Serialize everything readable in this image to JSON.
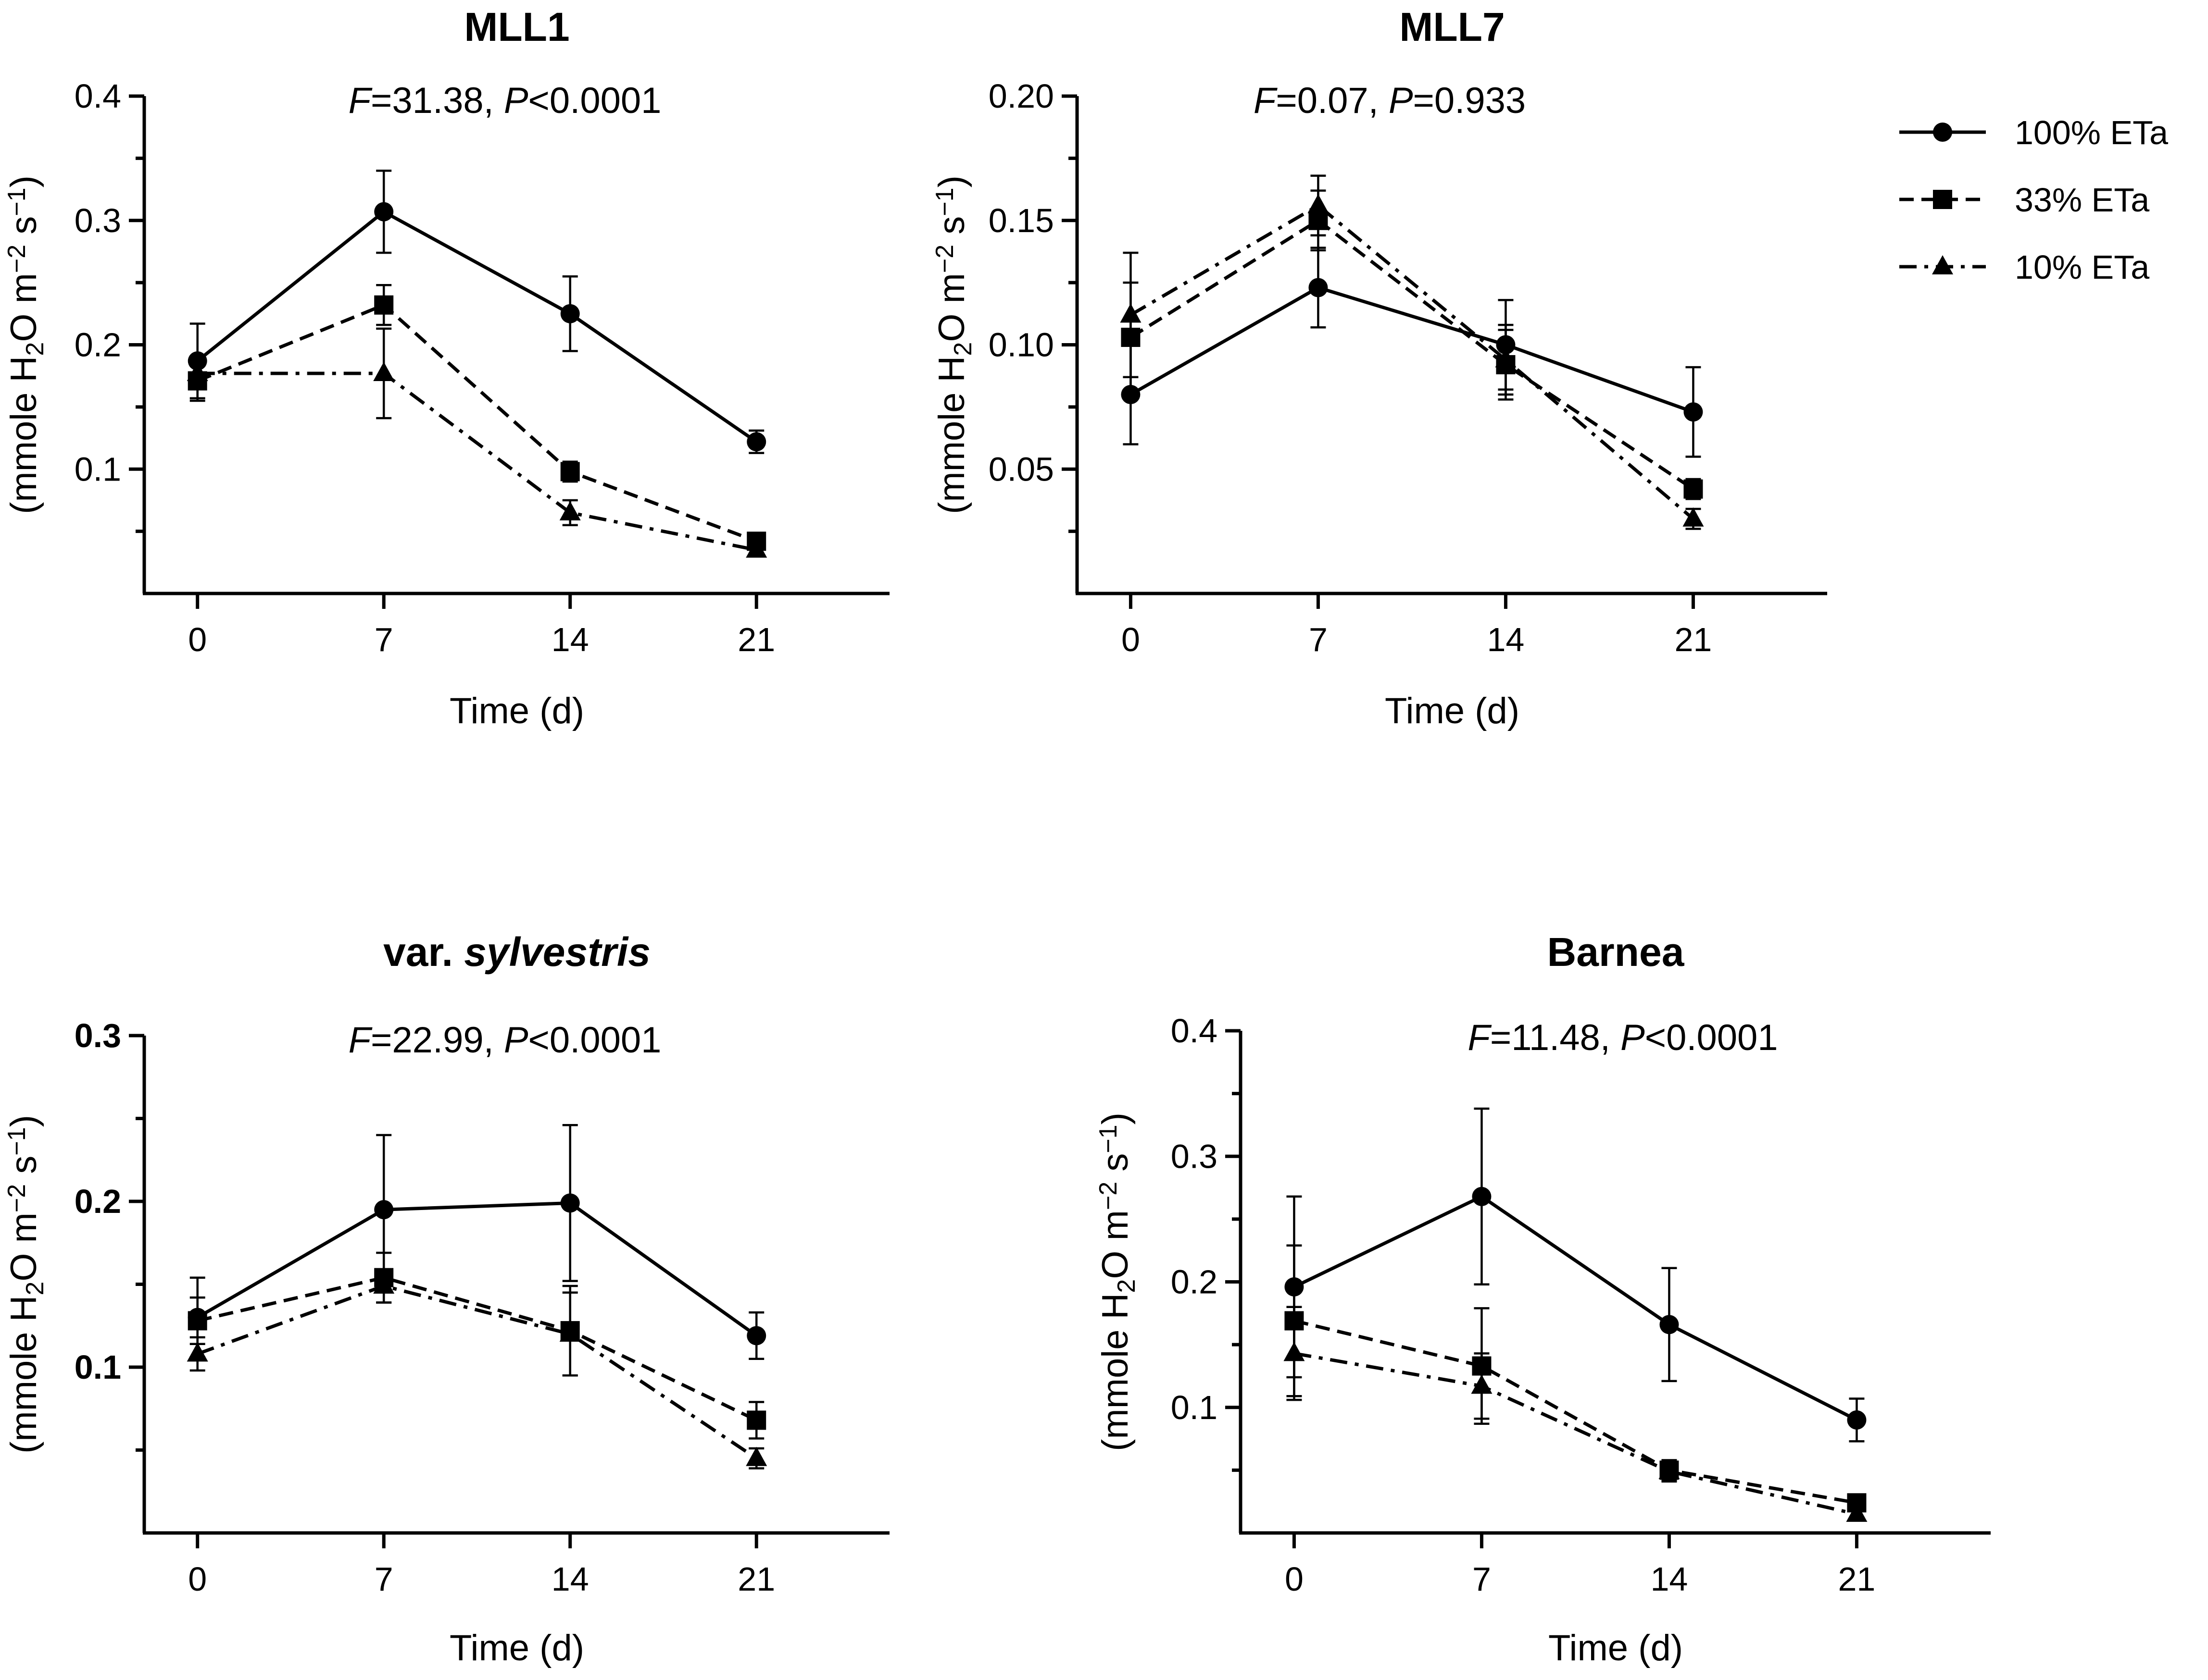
{
  "legend": {
    "entries": [
      {
        "label": "100% ETa",
        "marker": "circle",
        "dash": "solid"
      },
      {
        "label": "33% ETa",
        "marker": "square",
        "dash": "dashed"
      },
      {
        "label": "10% ETa",
        "marker": "triangle",
        "dash": "dashdot"
      }
    ]
  },
  "chart_data": [
    {
      "type": "line",
      "title": "MLL1",
      "stat": {
        "F": "31.38",
        "P": "<0.0001"
      },
      "xlabel": "Time (d)",
      "ylabel": "(mmole H2O m−2 s−1)",
      "x": [
        0,
        7,
        14,
        21
      ],
      "xlim": [
        -2,
        26
      ],
      "ylim": [
        0,
        0.4
      ],
      "yticks": [
        0.1,
        0.2,
        0.3,
        0.4
      ],
      "ytick_labels": [
        "0.1",
        "0.2",
        "0.3",
        "0.4"
      ],
      "ytick_bold": false,
      "series": [
        {
          "name": "100% ETa",
          "values": [
            0.187,
            0.307,
            0.225,
            0.122
          ],
          "err": [
            0.03,
            0.033,
            0.03,
            0.009
          ]
        },
        {
          "name": "33% ETa",
          "values": [
            0.171,
            0.232,
            0.098,
            0.042
          ],
          "err": [
            0.016,
            0.016,
            0.008,
            0.006
          ]
        },
        {
          "name": "10% ETa",
          "values": [
            0.177,
            0.177,
            0.065,
            0.035
          ],
          "err": [
            0.01,
            0.036,
            0.01,
            0.005
          ]
        }
      ]
    },
    {
      "type": "line",
      "title": "MLL7",
      "stat": {
        "F": "0.07",
        "P": "=0.933"
      },
      "xlabel": "Time (d)",
      "ylabel": "(mmole H2O m−2 s−1)",
      "x": [
        0,
        7,
        14,
        21
      ],
      "xlim": [
        -2,
        26
      ],
      "ylim": [
        0,
        0.2
      ],
      "yticks": [
        0.05,
        0.1,
        0.15,
        0.2
      ],
      "ytick_labels": [
        "0.05",
        "0.10",
        "0.15",
        "0.20"
      ],
      "ytick_bold": false,
      "series": [
        {
          "name": "100% ETa",
          "values": [
            0.08,
            0.123,
            0.1,
            0.073
          ],
          "err": [
            0.02,
            0.016,
            0.018,
            0.018
          ]
        },
        {
          "name": "33% ETa",
          "values": [
            0.103,
            0.15,
            0.092,
            0.042
          ],
          "err": [
            0.022,
            0.012,
            0.014,
            0.004
          ]
        },
        {
          "name": "10% ETa",
          "values": [
            0.112,
            0.156,
            0.094,
            0.03
          ],
          "err": [
            0.025,
            0.012,
            0.014,
            0.004
          ]
        }
      ]
    },
    {
      "type": "line",
      "title": "var. ",
      "title_italic": "sylvestris",
      "stat": {
        "F": "22.99",
        "P": "<0.0001"
      },
      "xlabel": "Time (d)",
      "ylabel": "(mmole H2O m−2 s−1)",
      "x": [
        0,
        7,
        14,
        21
      ],
      "xlim": [
        -2,
        26
      ],
      "ylim": [
        0,
        0.3
      ],
      "yticks": [
        0.1,
        0.2,
        0.3
      ],
      "ytick_labels": [
        "0.1",
        "0.2",
        "0.3"
      ],
      "ytick_bold": true,
      "series": [
        {
          "name": "100% ETa",
          "values": [
            0.13,
            0.195,
            0.199,
            0.119
          ],
          "err": [
            0.024,
            0.045,
            0.047,
            0.014
          ]
        },
        {
          "name": "33% ETa",
          "values": [
            0.128,
            0.154,
            0.122,
            0.068
          ],
          "err": [
            0.014,
            0.015,
            0.027,
            0.011
          ]
        },
        {
          "name": "10% ETa",
          "values": [
            0.108,
            0.149,
            0.12,
            0.045
          ],
          "err": [
            0.01,
            0.01,
            0.025,
            0.006
          ]
        }
      ]
    },
    {
      "type": "line",
      "title": "Barnea",
      "stat": {
        "F": "11.48",
        "P": "<0.0001"
      },
      "xlabel": "Time (d)",
      "ylabel": "(mmole H2O m−2 s−1)",
      "x": [
        0,
        7,
        14,
        21
      ],
      "xlim": [
        -2,
        26
      ],
      "ylim": [
        0,
        0.4
      ],
      "yticks": [
        0.1,
        0.2,
        0.3,
        0.4
      ],
      "ytick_labels": [
        "0.1",
        "0.2",
        "0.3",
        "0.4"
      ],
      "ytick_bold": false,
      "series": [
        {
          "name": "100% ETa",
          "values": [
            0.196,
            0.268,
            0.166,
            0.09
          ],
          "err": [
            0.072,
            0.07,
            0.045,
            0.017
          ]
        },
        {
          "name": "33% ETa",
          "values": [
            0.169,
            0.133,
            0.05,
            0.024
          ],
          "err": [
            0.06,
            0.046,
            0.008,
            0.004
          ]
        },
        {
          "name": "10% ETa",
          "values": [
            0.143,
            0.117,
            0.049,
            0.015
          ],
          "err": [
            0.037,
            0.026,
            0.008,
            0.003
          ]
        }
      ]
    }
  ]
}
